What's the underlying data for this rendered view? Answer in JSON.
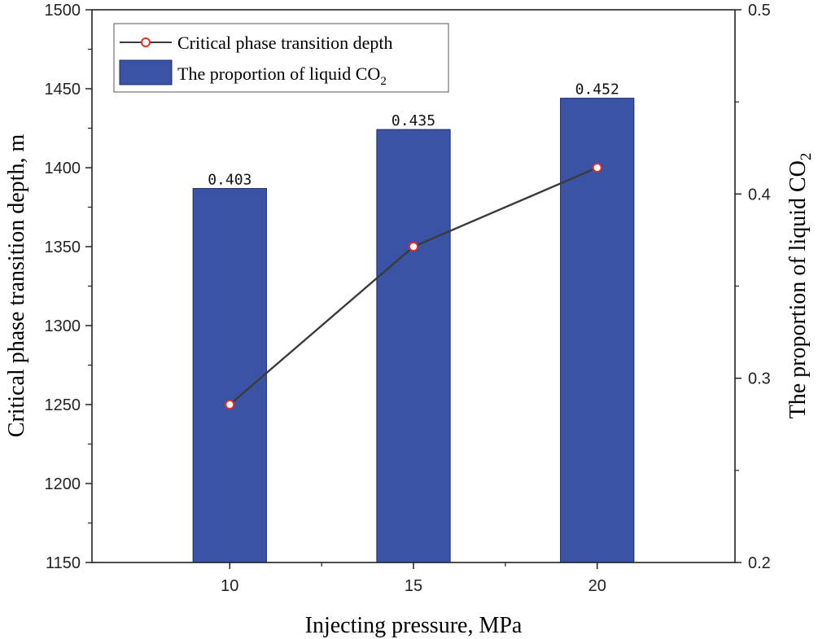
{
  "chart_data": {
    "type": "bar+line",
    "categories": [
      "10",
      "15",
      "20"
    ],
    "xlabel": "Injecting pressure, MPa",
    "left_axis": {
      "label": "Critical phase transition depth, m",
      "range": [
        1150,
        1500
      ],
      "ticks": [
        "1150",
        "1200",
        "1250",
        "1300",
        "1350",
        "1400",
        "1450",
        "1500"
      ]
    },
    "right_axis": {
      "label_main": "The proportion of liquid CO",
      "label_sub": "2",
      "range": [
        0.2,
        0.5
      ],
      "ticks": [
        "0.2",
        "0.3",
        "0.4",
        "0.5"
      ]
    },
    "series": [
      {
        "name": "The proportion of liquid CO",
        "name_sub": "2",
        "type": "bar",
        "axis": "right",
        "values": [
          0.403,
          0.435,
          0.452
        ],
        "labels": [
          "0.403",
          "0.435",
          "0.452"
        ],
        "color": "#3a53a4"
      },
      {
        "name": "Critical phase transition depth",
        "type": "line",
        "axis": "left",
        "values": [
          1250,
          1350,
          1400
        ],
        "color": "#3b3b3b",
        "marker_color": "#e0302a"
      }
    ],
    "legend_position": "top-left",
    "grid": false
  }
}
